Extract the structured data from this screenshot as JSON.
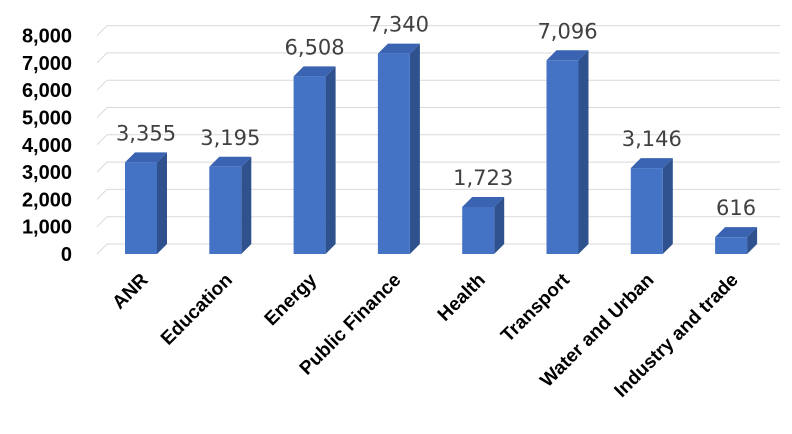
{
  "chart_data": {
    "type": "bar",
    "style": "3d-column",
    "categories": [
      "ANR",
      "Education",
      "Energy",
      "Public Finance",
      "Health",
      "Transport",
      "Water and Urban",
      "Industry and trade"
    ],
    "values": [
      3355,
      3195,
      6508,
      7340,
      1723,
      7096,
      3146,
      616
    ],
    "value_labels": [
      "3,355",
      "3,195",
      "6,508",
      "7,340",
      "1,723",
      "7,096",
      "3,146",
      "616"
    ],
    "ylim": [
      0,
      8000
    ],
    "y_ticks": [
      {
        "value": 0,
        "label": "0"
      },
      {
        "value": 1000,
        "label": "1,000"
      },
      {
        "value": 2000,
        "label": "2,000"
      },
      {
        "value": 3000,
        "label": "3,000"
      },
      {
        "value": 4000,
        "label": "4,000"
      },
      {
        "value": 5000,
        "label": "5,000"
      },
      {
        "value": 6000,
        "label": "6,000"
      },
      {
        "value": 7000,
        "label": "7,000"
      },
      {
        "value": 8000,
        "label": "8,000"
      }
    ],
    "grid": true,
    "legend": "none",
    "colors": {
      "bar_front": "#4472C4",
      "bar_side": "#2F528F",
      "bar_top": "#3A64B2",
      "grid": "#D9D9D9",
      "data_label": "#404040"
    }
  }
}
